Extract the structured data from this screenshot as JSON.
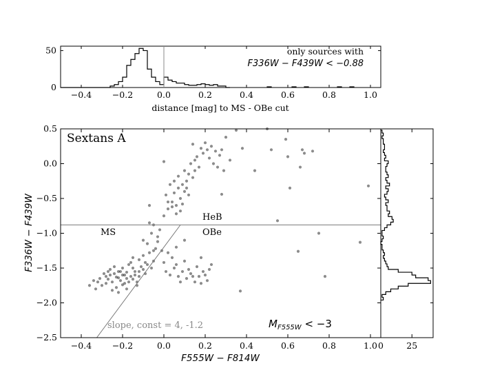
{
  "chart_data": [
    {
      "type": "histogram",
      "panel": "top",
      "xlabel": "distance [mag] to MS - OBe cut",
      "xlim": [
        -0.5,
        1.05
      ],
      "ylim": [
        0,
        56
      ],
      "xticks": [
        "−0.4",
        "−0.2",
        "0.0",
        "0.2",
        "0.4",
        "0.6",
        "0.8",
        "1.0"
      ],
      "yticks": [
        "0",
        "50"
      ],
      "vline_x": 0.0,
      "annotation": {
        "line1": "only sources with",
        "line2_math": "F336W − F439W < −0.88"
      },
      "bin_edges": [
        -0.26,
        -0.24,
        -0.22,
        -0.2,
        -0.18,
        -0.16,
        -0.14,
        -0.12,
        -0.1,
        -0.08,
        -0.06,
        -0.04,
        -0.02,
        0.0,
        0.02,
        0.04,
        0.06,
        0.08,
        0.1,
        0.12,
        0.14,
        0.16,
        0.18,
        0.2,
        0.22,
        0.24,
        0.26,
        0.28,
        0.3,
        0.32
      ],
      "counts": [
        2,
        4,
        8,
        14,
        30,
        38,
        46,
        53,
        50,
        25,
        14,
        8,
        4,
        14,
        10,
        8,
        6,
        6,
        4,
        3,
        3,
        4,
        5,
        4,
        3,
        4,
        2,
        2,
        0
      ]
    },
    {
      "type": "scatter",
      "panel": "main",
      "title": "Sextans A",
      "xlabel": "F555W − F814W",
      "ylabel": "F336W − F439W",
      "xlim": [
        -0.5,
        1.05
      ],
      "ylim": [
        -2.5,
        0.5
      ],
      "xticks": [
        "−0.4",
        "−0.2",
        "0.0",
        "0.2",
        "0.4",
        "0.6",
        "0.8",
        "1.0"
      ],
      "yticks": [
        "−2.5",
        "−2.0",
        "−1.5",
        "−1.0",
        "−0.5",
        "0.0",
        "0.5"
      ],
      "hline_y": -0.88,
      "cut_line": {
        "label": "slope, const = 4, -1.2",
        "slope": 4,
        "const": -1.2
      },
      "region_labels": [
        "MS",
        "HeB",
        "OBe"
      ],
      "magnitude_label": "M_F555W < −3",
      "points": [
        [
          -0.2,
          -1.6
        ],
        [
          -0.22,
          -1.55
        ],
        [
          -0.18,
          -1.65
        ],
        [
          -0.25,
          -1.7
        ],
        [
          -0.15,
          -1.5
        ],
        [
          -0.28,
          -1.62
        ],
        [
          -0.19,
          -1.72
        ],
        [
          -0.12,
          -1.55
        ],
        [
          -0.3,
          -1.75
        ],
        [
          -0.24,
          -1.58
        ],
        [
          -0.16,
          -1.62
        ],
        [
          -0.21,
          -1.68
        ],
        [
          -0.26,
          -1.52
        ],
        [
          -0.17,
          -1.45
        ],
        [
          -0.23,
          -1.78
        ],
        [
          -0.14,
          -1.6
        ],
        [
          -0.27,
          -1.66
        ],
        [
          -0.11,
          -1.48
        ],
        [
          -0.2,
          -1.5
        ],
        [
          -0.32,
          -1.7
        ],
        [
          -0.18,
          -1.56
        ],
        [
          -0.22,
          -1.64
        ],
        [
          -0.13,
          -1.7
        ],
        [
          -0.29,
          -1.58
        ],
        [
          -0.25,
          -1.82
        ],
        [
          -0.16,
          -1.42
        ],
        [
          -0.1,
          -1.52
        ],
        [
          -0.2,
          -1.74
        ],
        [
          -0.34,
          -1.68
        ],
        [
          -0.24,
          -1.48
        ],
        [
          -0.19,
          -1.6
        ],
        [
          -0.15,
          -1.66
        ],
        [
          -0.08,
          -1.45
        ],
        [
          -0.12,
          -1.62
        ],
        [
          -0.26,
          -1.6
        ],
        [
          -0.21,
          -1.55
        ],
        [
          -0.17,
          -1.7
        ],
        [
          -0.23,
          -1.63
        ],
        [
          -0.28,
          -1.72
        ],
        [
          -0.14,
          -1.55
        ],
        [
          -0.09,
          -1.58
        ],
        [
          -0.06,
          -1.5
        ],
        [
          -0.05,
          -1.4
        ],
        [
          -0.1,
          -1.32
        ],
        [
          -0.07,
          -1.28
        ],
        [
          -0.04,
          -1.22
        ],
        [
          -0.08,
          -1.15
        ],
        [
          -0.03,
          -1.05
        ],
        [
          -0.06,
          -1.0
        ],
        [
          -0.02,
          -0.95
        ],
        [
          -0.05,
          -0.88
        ],
        [
          -0.03,
          -1.12
        ],
        [
          -0.01,
          -1.25
        ],
        [
          -0.12,
          -1.38
        ],
        [
          -0.15,
          -1.35
        ],
        [
          -0.09,
          -1.42
        ],
        [
          -0.36,
          -1.75
        ],
        [
          -0.31,
          -1.65
        ],
        [
          -0.27,
          -1.55
        ],
        [
          -0.33,
          -1.8
        ],
        [
          -0.22,
          -1.85
        ],
        [
          -0.18,
          -1.8
        ],
        [
          -0.13,
          -1.75
        ],
        [
          0.01,
          -1.55
        ],
        [
          0.03,
          -1.6
        ],
        [
          0.05,
          -1.5
        ],
        [
          0.07,
          -1.62
        ],
        [
          0.09,
          -1.55
        ],
        [
          0.11,
          -1.65
        ],
        [
          0.13,
          -1.58
        ],
        [
          0.15,
          -1.7
        ],
        [
          0.17,
          -1.62
        ],
        [
          0.19,
          -1.55
        ],
        [
          0.21,
          -1.68
        ],
        [
          0.08,
          -1.7
        ],
        [
          0.12,
          -1.52
        ],
        [
          0.16,
          -1.48
        ],
        [
          0.14,
          -1.62
        ],
        [
          0.18,
          -1.72
        ],
        [
          0.06,
          -1.45
        ],
        [
          0.1,
          -1.4
        ],
        [
          0.04,
          -1.35
        ],
        [
          0.02,
          -1.28
        ],
        [
          0.2,
          -1.6
        ],
        [
          0.22,
          -1.52
        ],
        [
          0.06,
          -1.2
        ],
        [
          0.1,
          -1.1
        ],
        [
          0.0,
          -0.75
        ],
        [
          0.02,
          -0.65
        ],
        [
          0.04,
          -0.55
        ],
        [
          0.06,
          -0.6
        ],
        [
          0.08,
          -0.5
        ],
        [
          0.1,
          -0.4
        ],
        [
          0.05,
          -0.42
        ],
        [
          0.07,
          -0.35
        ],
        [
          0.09,
          -0.3
        ],
        [
          0.11,
          -0.25
        ],
        [
          0.12,
          -0.15
        ],
        [
          0.14,
          -0.2
        ],
        [
          0.1,
          -0.1
        ],
        [
          0.13,
          0.0
        ],
        [
          0.15,
          0.05
        ],
        [
          0.17,
          -0.05
        ],
        [
          0.03,
          -0.3
        ],
        [
          0.01,
          -0.45
        ],
        [
          0.06,
          -0.72
        ],
        [
          0.08,
          -0.68
        ],
        [
          0.04,
          -0.62
        ],
        [
          0.02,
          -0.55
        ],
        [
          0.12,
          -0.45
        ],
        [
          0.09,
          -0.58
        ],
        [
          0.16,
          0.1
        ],
        [
          0.19,
          0.15
        ],
        [
          0.21,
          0.2
        ],
        [
          0.23,
          0.25
        ],
        [
          0.2,
          0.3
        ],
        [
          0.25,
          0.18
        ],
        [
          0.18,
          0.22
        ],
        [
          0.22,
          0.08
        ],
        [
          0.27,
          0.12
        ],
        [
          0.24,
          0.0
        ],
        [
          0.15,
          -0.1
        ],
        [
          0.11,
          -0.35
        ],
        [
          0.07,
          -0.18
        ],
        [
          0.05,
          -0.25
        ],
        [
          0.0,
          0.03
        ],
        [
          0.14,
          0.28
        ],
        [
          0.3,
          0.38
        ],
        [
          0.28,
          0.2
        ],
        [
          0.32,
          0.05
        ],
        [
          0.29,
          -0.1
        ],
        [
          0.26,
          -0.05
        ],
        [
          0.35,
          0.48
        ],
        [
          0.5,
          0.5
        ],
        [
          0.38,
          0.22
        ],
        [
          0.52,
          0.2
        ],
        [
          0.59,
          0.35
        ],
        [
          0.6,
          0.1
        ],
        [
          0.67,
          0.2
        ],
        [
          0.68,
          0.15
        ],
        [
          0.72,
          0.18
        ],
        [
          0.66,
          -0.05
        ],
        [
          0.61,
          -0.35
        ],
        [
          0.44,
          -0.1
        ],
        [
          0.99,
          -0.32
        ],
        [
          0.55,
          -0.82
        ],
        [
          0.75,
          -1.0
        ],
        [
          0.65,
          -1.26
        ],
        [
          0.95,
          -1.13
        ],
        [
          0.78,
          -1.62
        ],
        [
          0.37,
          -1.83
        ],
        [
          0.28,
          -0.44
        ],
        [
          -0.07,
          -0.6
        ],
        [
          -0.07,
          -0.85
        ],
        [
          -0.1,
          -1.1
        ],
        [
          -0.05,
          -1.25
        ],
        [
          0.0,
          -1.42
        ],
        [
          0.23,
          -1.45
        ],
        [
          0.18,
          -1.35
        ]
      ]
    },
    {
      "type": "histogram",
      "panel": "right",
      "orientation": "horizontal",
      "xticks": [
        "0",
        "25"
      ],
      "xlim": [
        0,
        42
      ],
      "bin_edges": [
        -1.96,
        -1.92,
        -1.88,
        -1.84,
        -1.8,
        -1.76,
        -1.72,
        -1.68,
        -1.64,
        -1.6,
        -1.56,
        -1.52,
        -1.48,
        -1.44,
        -1.4,
        -1.36,
        -1.32,
        -1.28,
        -1.24,
        -1.2,
        -1.16,
        -1.12,
        -1.08,
        -1.04,
        -1.0,
        -0.96,
        -0.92,
        -0.88,
        -0.84,
        -0.8,
        -0.76,
        -0.72,
        -0.68,
        -0.64,
        -0.6,
        -0.56,
        -0.52,
        -0.48,
        -0.44,
        -0.4,
        -0.36,
        -0.32,
        -0.28,
        -0.24,
        -0.2,
        -0.16,
        -0.12,
        -0.08,
        -0.04,
        0.0,
        0.04,
        0.08,
        0.12,
        0.16,
        0.2,
        0.24,
        0.28,
        0.32,
        0.36,
        0.4,
        0.44,
        0.48
      ],
      "counts": [
        2,
        1,
        4,
        8,
        14,
        22,
        40,
        38,
        28,
        25,
        14,
        6,
        5,
        4,
        3,
        2,
        3,
        2,
        1,
        1,
        0,
        1,
        2,
        1,
        1,
        3,
        5,
        8,
        10,
        9,
        6,
        7,
        5,
        5,
        4,
        6,
        4,
        3,
        5,
        6,
        4,
        7,
        5,
        4,
        6,
        5,
        4,
        4,
        5,
        6,
        3,
        4,
        3,
        2,
        3,
        3,
        2,
        2,
        1,
        2,
        1
      ]
    }
  ]
}
